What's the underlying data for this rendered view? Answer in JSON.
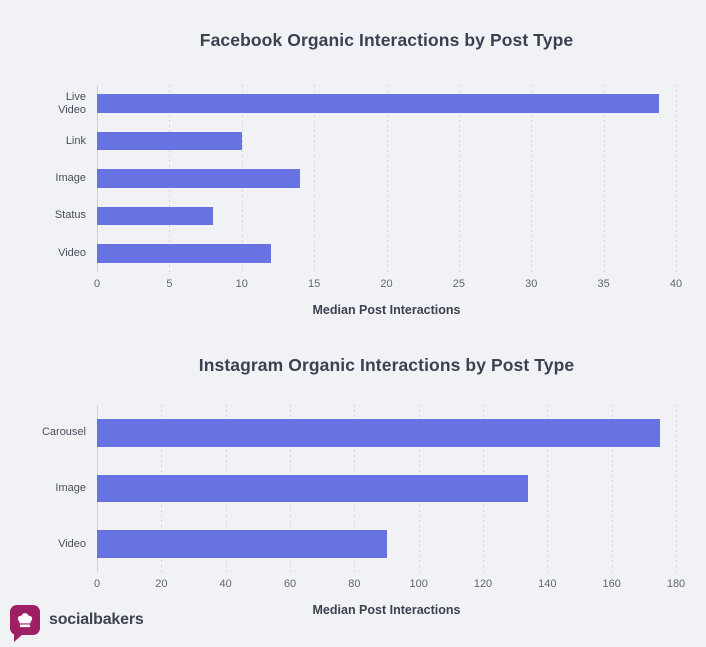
{
  "colors": {
    "bg": "#f1f2f5",
    "bar": "#6772e3",
    "logo": "#9c2063",
    "title_text": "#3a4150",
    "tick_text": "#5f6673",
    "grid": "#d2d5db"
  },
  "chart_data": [
    {
      "type": "bar",
      "orientation": "horizontal",
      "title": "Facebook Organic Interactions by Post Type",
      "xlabel": "Median Post Interactions",
      "categories": [
        "Live\nVideo",
        "Link",
        "Image",
        "Status",
        "Video"
      ],
      "values": [
        38.8,
        10,
        14,
        8,
        12
      ],
      "xlim": [
        0,
        40
      ],
      "ticks": [
        0,
        5,
        10,
        15,
        20,
        25,
        30,
        35,
        40
      ],
      "grid": "vertical-dotted",
      "legend": "none"
    },
    {
      "type": "bar",
      "orientation": "horizontal",
      "title": "Instagram Organic Interactions by Post Type",
      "xlabel": "Median Post Interactions",
      "categories": [
        "Carousel",
        "Image",
        "Video"
      ],
      "values": [
        175,
        134,
        90
      ],
      "xlim": [
        0,
        180
      ],
      "ticks": [
        0,
        20,
        40,
        60,
        80,
        100,
        120,
        140,
        160,
        180
      ],
      "grid": "vertical-dotted",
      "legend": "none"
    }
  ],
  "footer": {
    "brand": "socialbakers"
  }
}
